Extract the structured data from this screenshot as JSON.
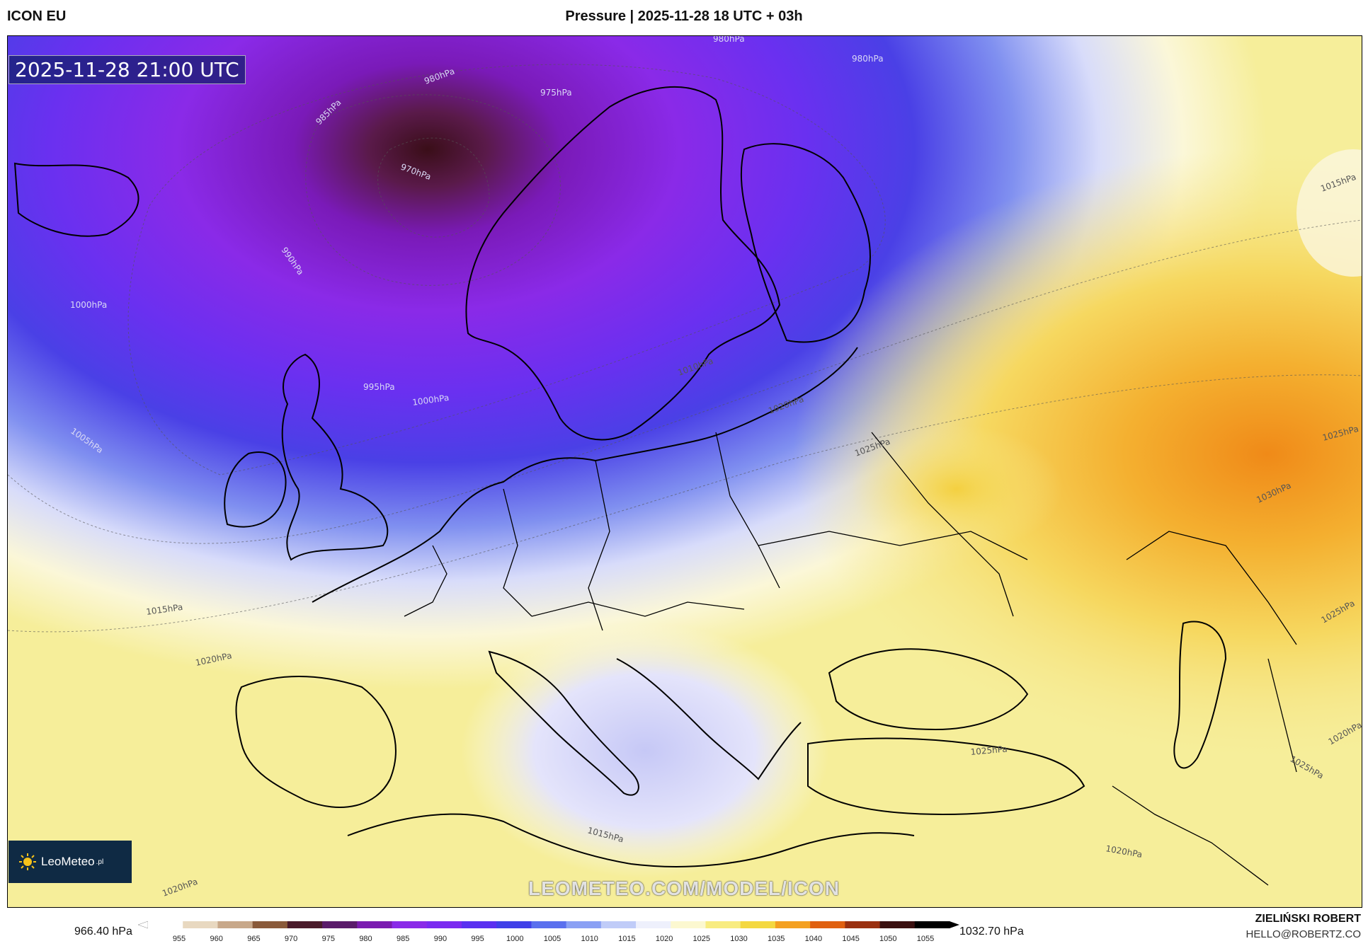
{
  "header": {
    "model": "ICON EU",
    "title": "Pressure | 2025-11-28 18 UTC + 03h"
  },
  "map": {
    "timestamp": "2025-11-28 21:00 UTC",
    "watermark": "LEOMETEO.COM/MODEL/ICON",
    "logo_text": "LeoMeteo",
    "logo_suffix": ".pl",
    "isobar_labels": [
      {
        "text": "980hPa",
        "light": true
      },
      {
        "text": "975hPa",
        "light": true
      },
      {
        "text": "985hPa",
        "light": true
      },
      {
        "text": "970hPa",
        "light": true
      },
      {
        "text": "990hPa",
        "light": true
      },
      {
        "text": "1000hPa",
        "light": true
      },
      {
        "text": "995hPa",
        "light": true
      },
      {
        "text": "1000hPa",
        "light": true
      },
      {
        "text": "1005hPa",
        "light": true
      },
      {
        "text": "1010hPa",
        "light": false
      },
      {
        "text": "1015hPa",
        "light": false
      },
      {
        "text": "1020hPa",
        "light": false
      },
      {
        "text": "1025hPa",
        "light": false
      },
      {
        "text": "1030hPa",
        "light": false
      },
      {
        "text": "1015hPa",
        "light": false
      },
      {
        "text": "1020hPa",
        "light": false
      },
      {
        "text": "1020hPa",
        "light": false
      },
      {
        "text": "1025hPa",
        "light": false
      },
      {
        "text": "1025hPa",
        "light": false
      },
      {
        "text": "1025hPa",
        "light": false
      },
      {
        "text": "1015hPa",
        "light": false
      },
      {
        "text": "1020hPa",
        "light": false
      },
      {
        "text": "1020hPa",
        "light": false
      },
      {
        "text": "1025hPa",
        "light": false
      },
      {
        "text": "1015hPa",
        "light": false
      },
      {
        "text": "980hPa",
        "light": true
      },
      {
        "text": "980hPa",
        "light": true
      }
    ]
  },
  "legend": {
    "min_label": "966.40 hPa",
    "max_label": "1032.70 hPa",
    "ticks": [
      "955",
      "960",
      "965",
      "970",
      "975",
      "980",
      "985",
      "990",
      "995",
      "1000",
      "1005",
      "1010",
      "1015",
      "1020",
      "1025",
      "1030",
      "1035",
      "1040",
      "1045",
      "1050",
      "1055"
    ],
    "colors": [
      "#ffffff",
      "#e8d8c0",
      "#c8a88a",
      "#8a5a3a",
      "#4a1a2a",
      "#5a1a6a",
      "#7a1ab0",
      "#8a2ae8",
      "#7a2af0",
      "#5a30f0",
      "#4040e8",
      "#5a70ee",
      "#8aa0f4",
      "#c0ccf8",
      "#eef0fc",
      "#fcf8d0",
      "#f8ec80",
      "#f4d840",
      "#f4a020",
      "#e06010",
      "#9a3010",
      "#3a1010",
      "#000000"
    ]
  },
  "footer": {
    "author": "ZIELIŃSKI ROBERT",
    "email": "HELLO@ROBERTZ.CO"
  }
}
